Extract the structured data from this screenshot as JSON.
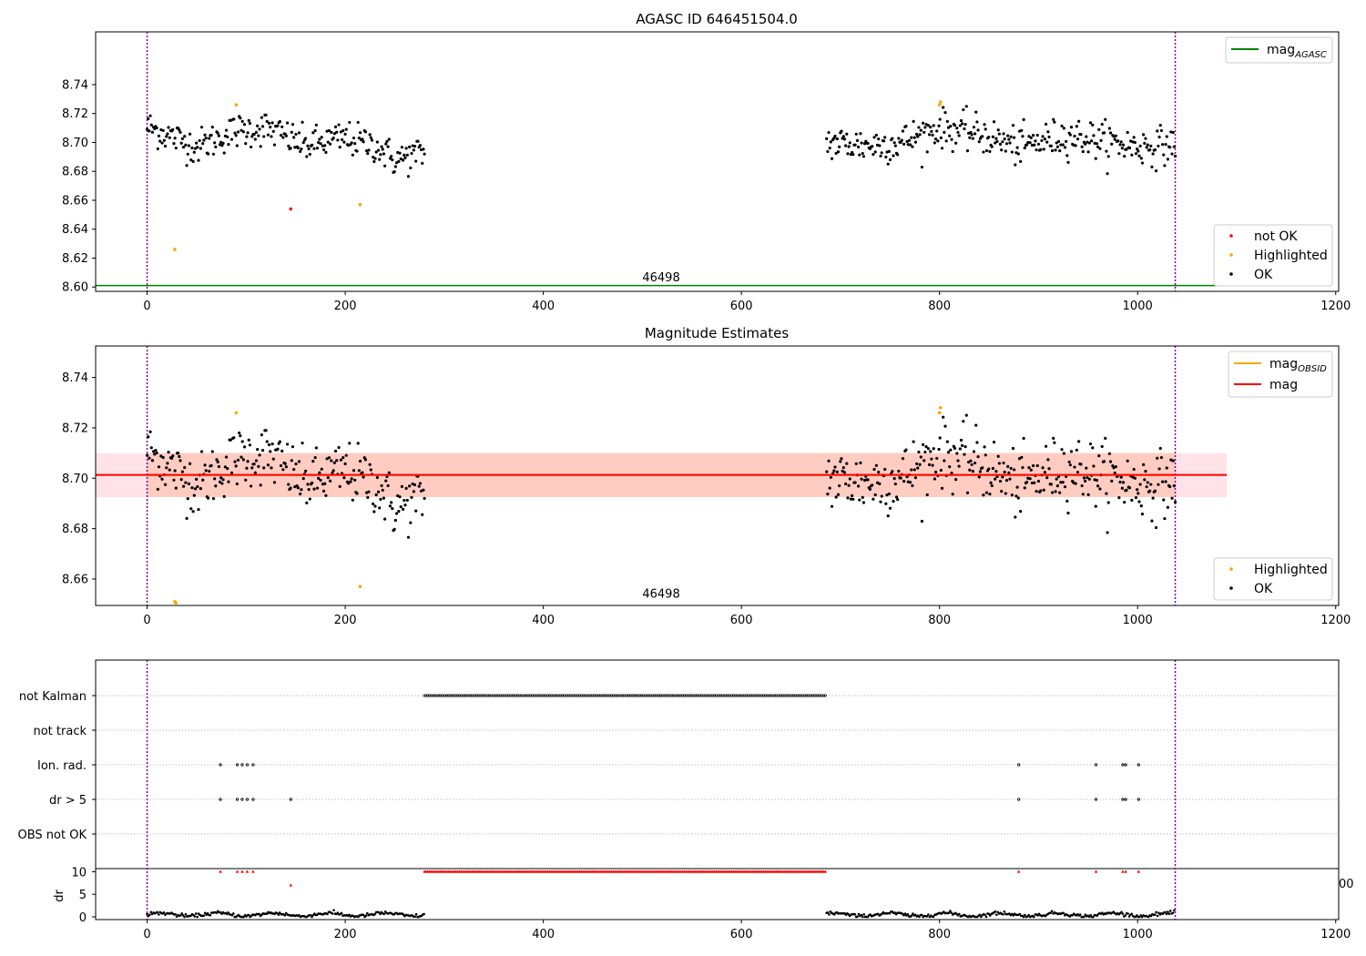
{
  "chart_data": [
    {
      "type": "scatter",
      "title": "AGASC ID 646451504.0",
      "xlim": [
        -52,
        1203
      ],
      "ylim": [
        8.597,
        8.7765
      ],
      "xticks": [
        0,
        200,
        400,
        600,
        800,
        1000,
        1200
      ],
      "yticks": [
        8.6,
        8.62,
        8.64,
        8.66,
        8.68,
        8.7,
        8.72,
        8.74
      ],
      "ytick_labels": [
        "8.60",
        "8.62",
        "8.64",
        "8.66",
        "8.68",
        "8.70",
        "8.72",
        "8.74"
      ],
      "vlines": [
        0,
        1038
      ],
      "vline_color": "#800080",
      "hline": {
        "y": 8.601,
        "x_end": 1090,
        "color": "#008000"
      },
      "annotation": {
        "text": "46498",
        "x": 519,
        "y": 8.604
      },
      "segments": [
        {
          "x_start": 0,
          "x_end": 280,
          "n": 260,
          "centers": [
            [
              0,
              8.711
            ],
            [
              50,
              8.697
            ],
            [
              90,
              8.708
            ],
            [
              120,
              8.71
            ],
            [
              160,
              8.698
            ],
            [
              200,
              8.703
            ],
            [
              230,
              8.698
            ],
            [
              250,
              8.688
            ],
            [
              280,
              8.693
            ]
          ],
          "spread": 0.006
        },
        {
          "x_start": 686,
          "x_end": 1038,
          "n": 330,
          "centers": [
            [
              686,
              8.7
            ],
            [
              730,
              8.698
            ],
            [
              760,
              8.7
            ],
            [
              800,
              8.71
            ],
            [
              840,
              8.706
            ],
            [
              880,
              8.697
            ],
            [
              930,
              8.705
            ],
            [
              1000,
              8.697
            ],
            [
              1038,
              8.698
            ]
          ],
          "spread": 0.0065
        }
      ],
      "series": [
        {
          "name": "not OK",
          "color": "#ff0000",
          "points": [
            [
              145,
              8.654
            ]
          ]
        },
        {
          "name": "Highlighted",
          "color": "#ffa500",
          "points": [
            [
              28,
              8.626
            ],
            [
              90,
              8.726
            ],
            [
              215,
              8.657
            ],
            [
              800,
              8.726
            ],
            [
              801,
              8.728
            ]
          ]
        },
        {
          "name": "OK",
          "color": "#000000"
        }
      ],
      "legend_top": [
        {
          "label": "mag",
          "sub": "AGASC",
          "color": "#008000"
        }
      ],
      "legend_bottom": [
        {
          "label": "not OK",
          "color": "#ff0000"
        },
        {
          "label": "Highlighted",
          "color": "#ffa500"
        },
        {
          "label": "OK",
          "color": "#000000"
        }
      ]
    },
    {
      "type": "scatter",
      "title": "Magnitude Estimates",
      "xlim": [
        -52,
        1203
      ],
      "ylim": [
        8.6495,
        8.7525
      ],
      "xticks": [
        0,
        200,
        400,
        600,
        800,
        1000,
        1200
      ],
      "yticks": [
        8.66,
        8.68,
        8.7,
        8.72,
        8.74
      ],
      "ytick_labels": [
        "8.66",
        "8.68",
        "8.70",
        "8.72",
        "8.74"
      ],
      "vlines": [
        0,
        1038
      ],
      "vline_color": "#800080",
      "mag_line": {
        "y": 8.7013,
        "x_end": 1090,
        "color": "#ff0000"
      },
      "mag_obsid": {
        "y": 8.7013,
        "color": "#ffa500"
      },
      "band": {
        "y0": 8.6925,
        "y1": 8.71,
        "x_end": 1090,
        "band_color": "#ffc0cb",
        "obsid_band_color": "#ffa07a",
        "obsid_x_end": 1038
      },
      "annotation": {
        "text": "46498",
        "x": 519,
        "y": 8.6525
      },
      "series": [
        {
          "name": "Highlighted",
          "color": "#ffa500",
          "points": [
            [
              28,
              8.651
            ],
            [
              29,
              8.6505
            ],
            [
              90,
              8.726
            ],
            [
              215,
              8.657
            ],
            [
              800,
              8.726
            ],
            [
              801,
              8.728
            ]
          ]
        },
        {
          "name": "OK",
          "color": "#000000"
        }
      ],
      "legend_top": [
        {
          "label": "mag",
          "sub": "OBSID",
          "color": "#ffa500"
        },
        {
          "label": "mag",
          "sub": "",
          "color": "#ff0000"
        }
      ],
      "legend_bottom": [
        {
          "label": "Highlighted",
          "color": "#ffa500"
        },
        {
          "label": "OK",
          "color": "#000000"
        }
      ]
    },
    {
      "type": "scatter",
      "title": "",
      "xlim": [
        -52,
        1203
      ],
      "xticks": [
        0,
        200,
        400,
        600,
        800,
        1000,
        1200
      ],
      "vlines": [
        0,
        1038
      ],
      "vline_color": "#800080",
      "flag_rows": [
        "not Kalman",
        "not track",
        "Ion. rad.",
        "dr > 5",
        "OBS not OK"
      ],
      "flags": {
        "not Kalman": {
          "ranges": [
            [
              280,
              686
            ]
          ],
          "points": []
        },
        "not track": {
          "ranges": [],
          "points": []
        },
        "Ion. rad.": {
          "ranges": [],
          "points": [
            74,
            91,
            96,
            101,
            107,
            880,
            958,
            985,
            988,
            1001
          ]
        },
        "dr > 5": {
          "ranges": [],
          "points": [
            74,
            91,
            96,
            101,
            107,
            145,
            880,
            958,
            985,
            988,
            1001
          ]
        },
        "OBS not OK": {
          "ranges": [],
          "points": []
        }
      },
      "dr_panel": {
        "ylabel": "dr",
        "yticks": [
          0,
          5,
          10
        ],
        "ylim": [
          -0.6,
          10.7
        ],
        "clipped_label": "00",
        "high_points_color": "#ff0000",
        "high_points": {
          "ranges": [
            [
              280,
              686
            ]
          ],
          "points": [
            74,
            91,
            96,
            101,
            107,
            880,
            958,
            985,
            988,
            1001
          ]
        },
        "single_points": [
          [
            145,
            7.0
          ]
        ],
        "baseline": {
          "segments": [
            [
              0,
              280
            ],
            [
              686,
              1038
            ]
          ],
          "mean": 0.5,
          "spread": 0.35
        }
      }
    }
  ]
}
